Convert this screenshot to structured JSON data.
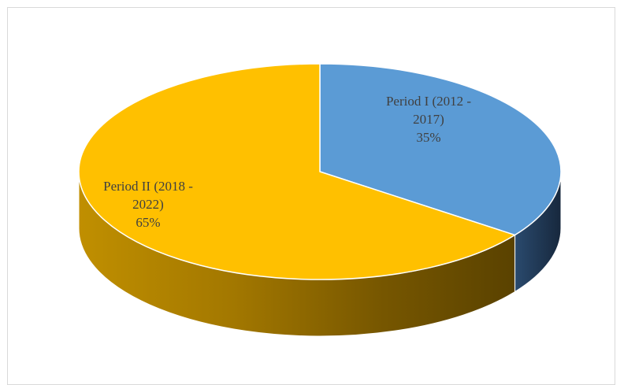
{
  "chart_data": {
    "type": "pie",
    "title": "",
    "slices": [
      {
        "label_lines": [
          "Period I (2012 -",
          "2017)"
        ],
        "percent_label": "35%",
        "value": 35,
        "color": "#5b9bd5",
        "side_color": "#1f3a5a"
      },
      {
        "label_lines": [
          "Period II (2018 -",
          "2022)"
        ],
        "percent_label": "65%",
        "value": 65,
        "color": "#ffc000",
        "side_color": "#b58600"
      }
    ]
  }
}
